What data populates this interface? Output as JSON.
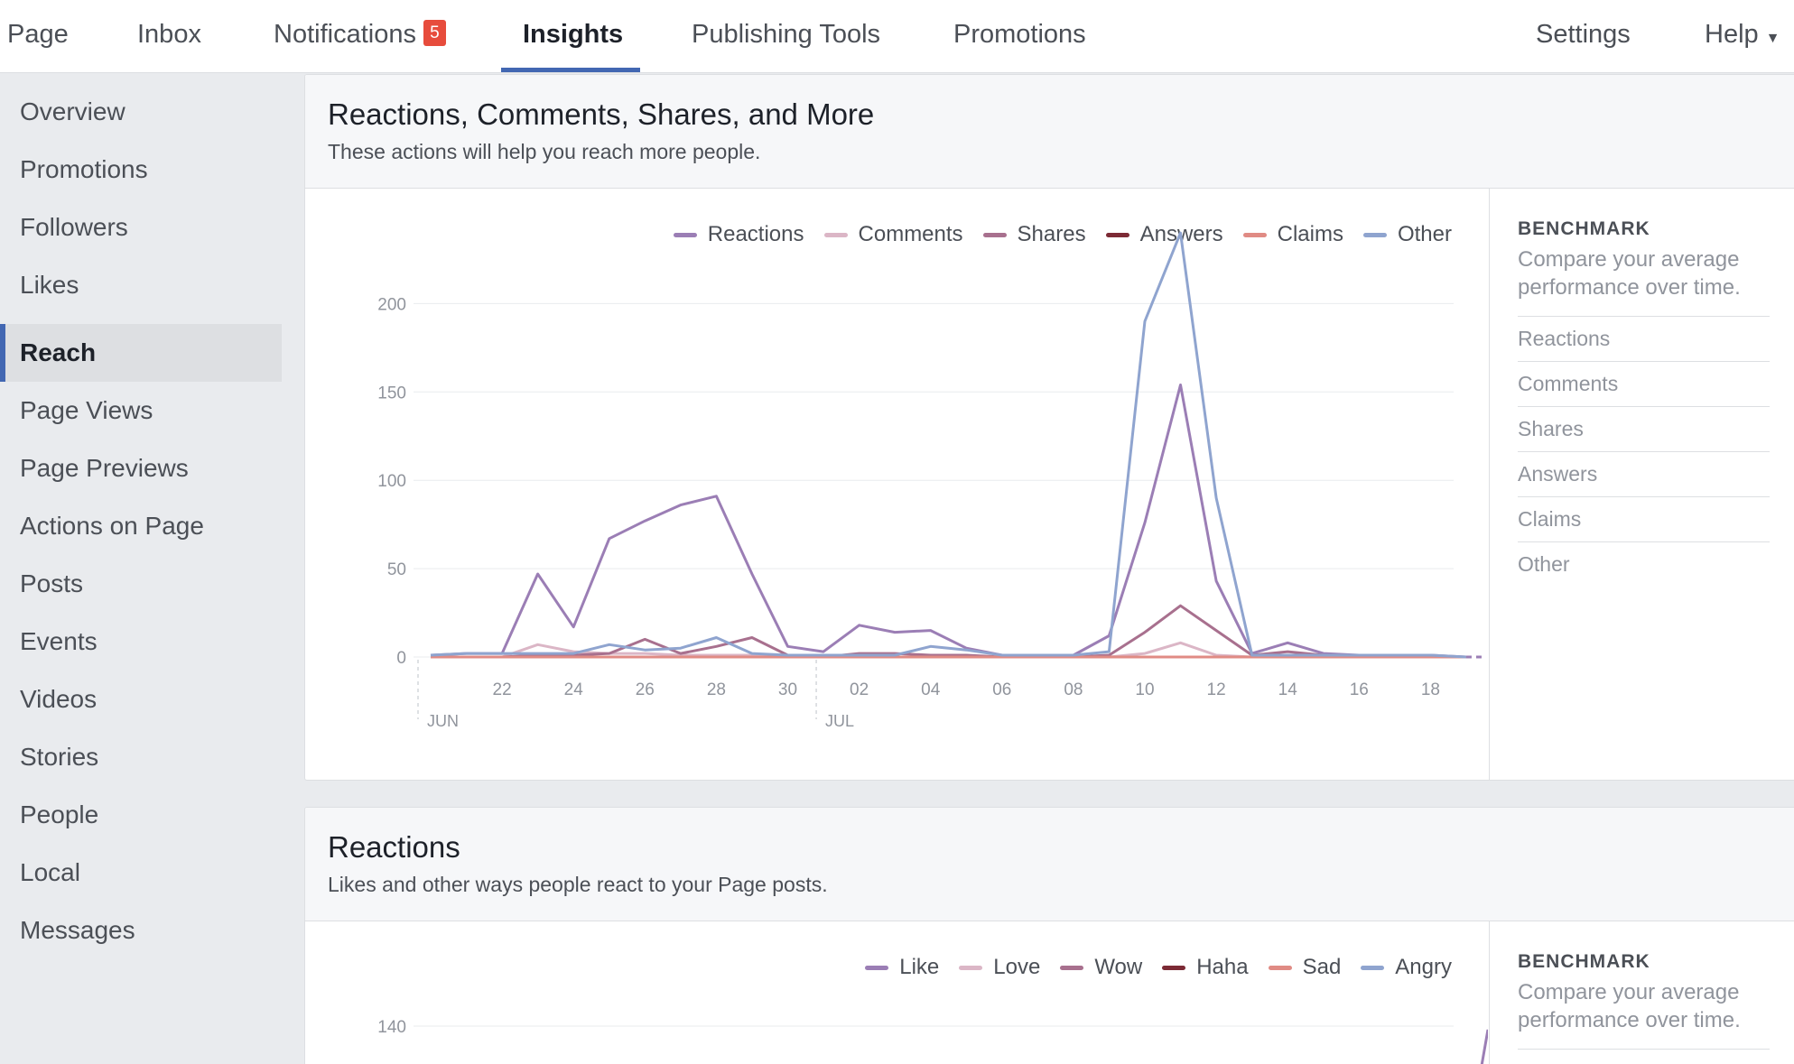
{
  "nav": {
    "page": "Page",
    "inbox": "Inbox",
    "notifications": "Notifications",
    "notifications_count": "5",
    "insights": "Insights",
    "publishing_tools": "Publishing Tools",
    "promotions": "Promotions",
    "settings": "Settings",
    "help": "Help",
    "help_caret": "▼"
  },
  "sidebar": {
    "items": [
      {
        "label": "Overview"
      },
      {
        "label": "Promotions"
      },
      {
        "label": "Followers"
      },
      {
        "label": "Likes"
      },
      {
        "label": "Reach"
      },
      {
        "label": "Page Views"
      },
      {
        "label": "Page Previews"
      },
      {
        "label": "Actions on Page"
      },
      {
        "label": "Posts"
      },
      {
        "label": "Events"
      },
      {
        "label": "Videos"
      },
      {
        "label": "Stories"
      },
      {
        "label": "People"
      },
      {
        "label": "Local"
      },
      {
        "label": "Messages"
      }
    ],
    "active_index": 4
  },
  "sections": [
    {
      "title": "Reactions, Comments, Shares, and More",
      "subtitle": "These actions will help you reach more people.",
      "benchmark": {
        "title": "BENCHMARK",
        "description": "Compare your average performance over time.",
        "items": [
          "Reactions",
          "Comments",
          "Shares",
          "Answers",
          "Claims",
          "Other"
        ]
      }
    },
    {
      "title": "Reactions",
      "subtitle": "Likes and other ways people react to your Page posts.",
      "benchmark": {
        "title": "BENCHMARK",
        "description": "Compare your average performance over time."
      }
    }
  ],
  "chart_data": [
    {
      "type": "line",
      "title": "",
      "ylim": [
        0,
        240
      ],
      "yticks": [
        0,
        50,
        100,
        150,
        200
      ],
      "x_start": "2018-06-20",
      "x_end": "2018-07-20",
      "x_tick_labels": [
        "22",
        "24",
        "26",
        "28",
        "30",
        "02",
        "04",
        "06",
        "08",
        "10",
        "12",
        "14",
        "16",
        "18"
      ],
      "month_labels": [
        "JUN",
        "JUL"
      ],
      "grid": true,
      "legend": "top-right",
      "x": [
        "06-20",
        "06-21",
        "06-22",
        "06-23",
        "06-24",
        "06-25",
        "06-26",
        "06-27",
        "06-28",
        "06-29",
        "06-30",
        "07-01",
        "07-02",
        "07-03",
        "07-04",
        "07-05",
        "07-06",
        "07-07",
        "07-08",
        "07-09",
        "07-10",
        "07-11",
        "07-12",
        "07-13",
        "07-14",
        "07-15",
        "07-16",
        "07-17",
        "07-18",
        "07-19"
      ],
      "series": [
        {
          "name": "Reactions",
          "color": "#9b7eb5",
          "values": [
            1,
            2,
            2,
            47,
            17,
            67,
            77,
            86,
            91,
            47,
            6,
            3,
            18,
            14,
            15,
            5,
            1,
            1,
            1,
            12,
            76,
            154,
            43,
            2,
            8,
            2,
            1,
            1,
            1,
            0
          ]
        },
        {
          "name": "Comments",
          "color": "#dbb6c6",
          "values": [
            0,
            0,
            0,
            7,
            3,
            2,
            2,
            1,
            1,
            1,
            0,
            0,
            0,
            0,
            0,
            0,
            0,
            0,
            0,
            0,
            2,
            8,
            1,
            0,
            0,
            0,
            0,
            0,
            0,
            0
          ]
        },
        {
          "name": "Shares",
          "color": "#a8708e",
          "values": [
            0,
            0,
            0,
            1,
            1,
            2,
            10,
            2,
            6,
            11,
            1,
            0,
            2,
            2,
            1,
            1,
            0,
            0,
            0,
            1,
            14,
            29,
            15,
            1,
            3,
            1,
            0,
            0,
            0,
            0
          ]
        },
        {
          "name": "Answers",
          "color": "#7c2a35",
          "values": [
            0,
            0,
            0,
            0,
            0,
            0,
            0,
            0,
            0,
            0,
            0,
            0,
            0,
            0,
            0,
            0,
            0,
            0,
            0,
            0,
            0,
            0,
            0,
            0,
            0,
            0,
            0,
            0,
            0,
            0
          ]
        },
        {
          "name": "Claims",
          "color": "#e08b84",
          "values": [
            0,
            0,
            0,
            0,
            0,
            0,
            0,
            0,
            0,
            0,
            0,
            0,
            0,
            0,
            0,
            0,
            0,
            0,
            0,
            0,
            0,
            0,
            0,
            0,
            0,
            0,
            0,
            0,
            0,
            0
          ]
        },
        {
          "name": "Other",
          "color": "#8fa4cf",
          "values": [
            1,
            2,
            2,
            2,
            2,
            7,
            4,
            5,
            11,
            2,
            1,
            1,
            1,
            1,
            6,
            4,
            1,
            1,
            1,
            3,
            190,
            240,
            90,
            1,
            1,
            1,
            1,
            1,
            1,
            0
          ]
        }
      ]
    },
    {
      "type": "line",
      "title": "",
      "ylim": [
        0,
        150
      ],
      "yticks": [
        140
      ],
      "grid": true,
      "legend": "top-right",
      "series": [
        {
          "name": "Like",
          "color": "#9b7eb5"
        },
        {
          "name": "Love",
          "color": "#dbb6c6"
        },
        {
          "name": "Wow",
          "color": "#a8708e"
        },
        {
          "name": "Haha",
          "color": "#7c2a35"
        },
        {
          "name": "Sad",
          "color": "#e08b84"
        },
        {
          "name": "Angry",
          "color": "#8fa4cf"
        }
      ]
    }
  ]
}
